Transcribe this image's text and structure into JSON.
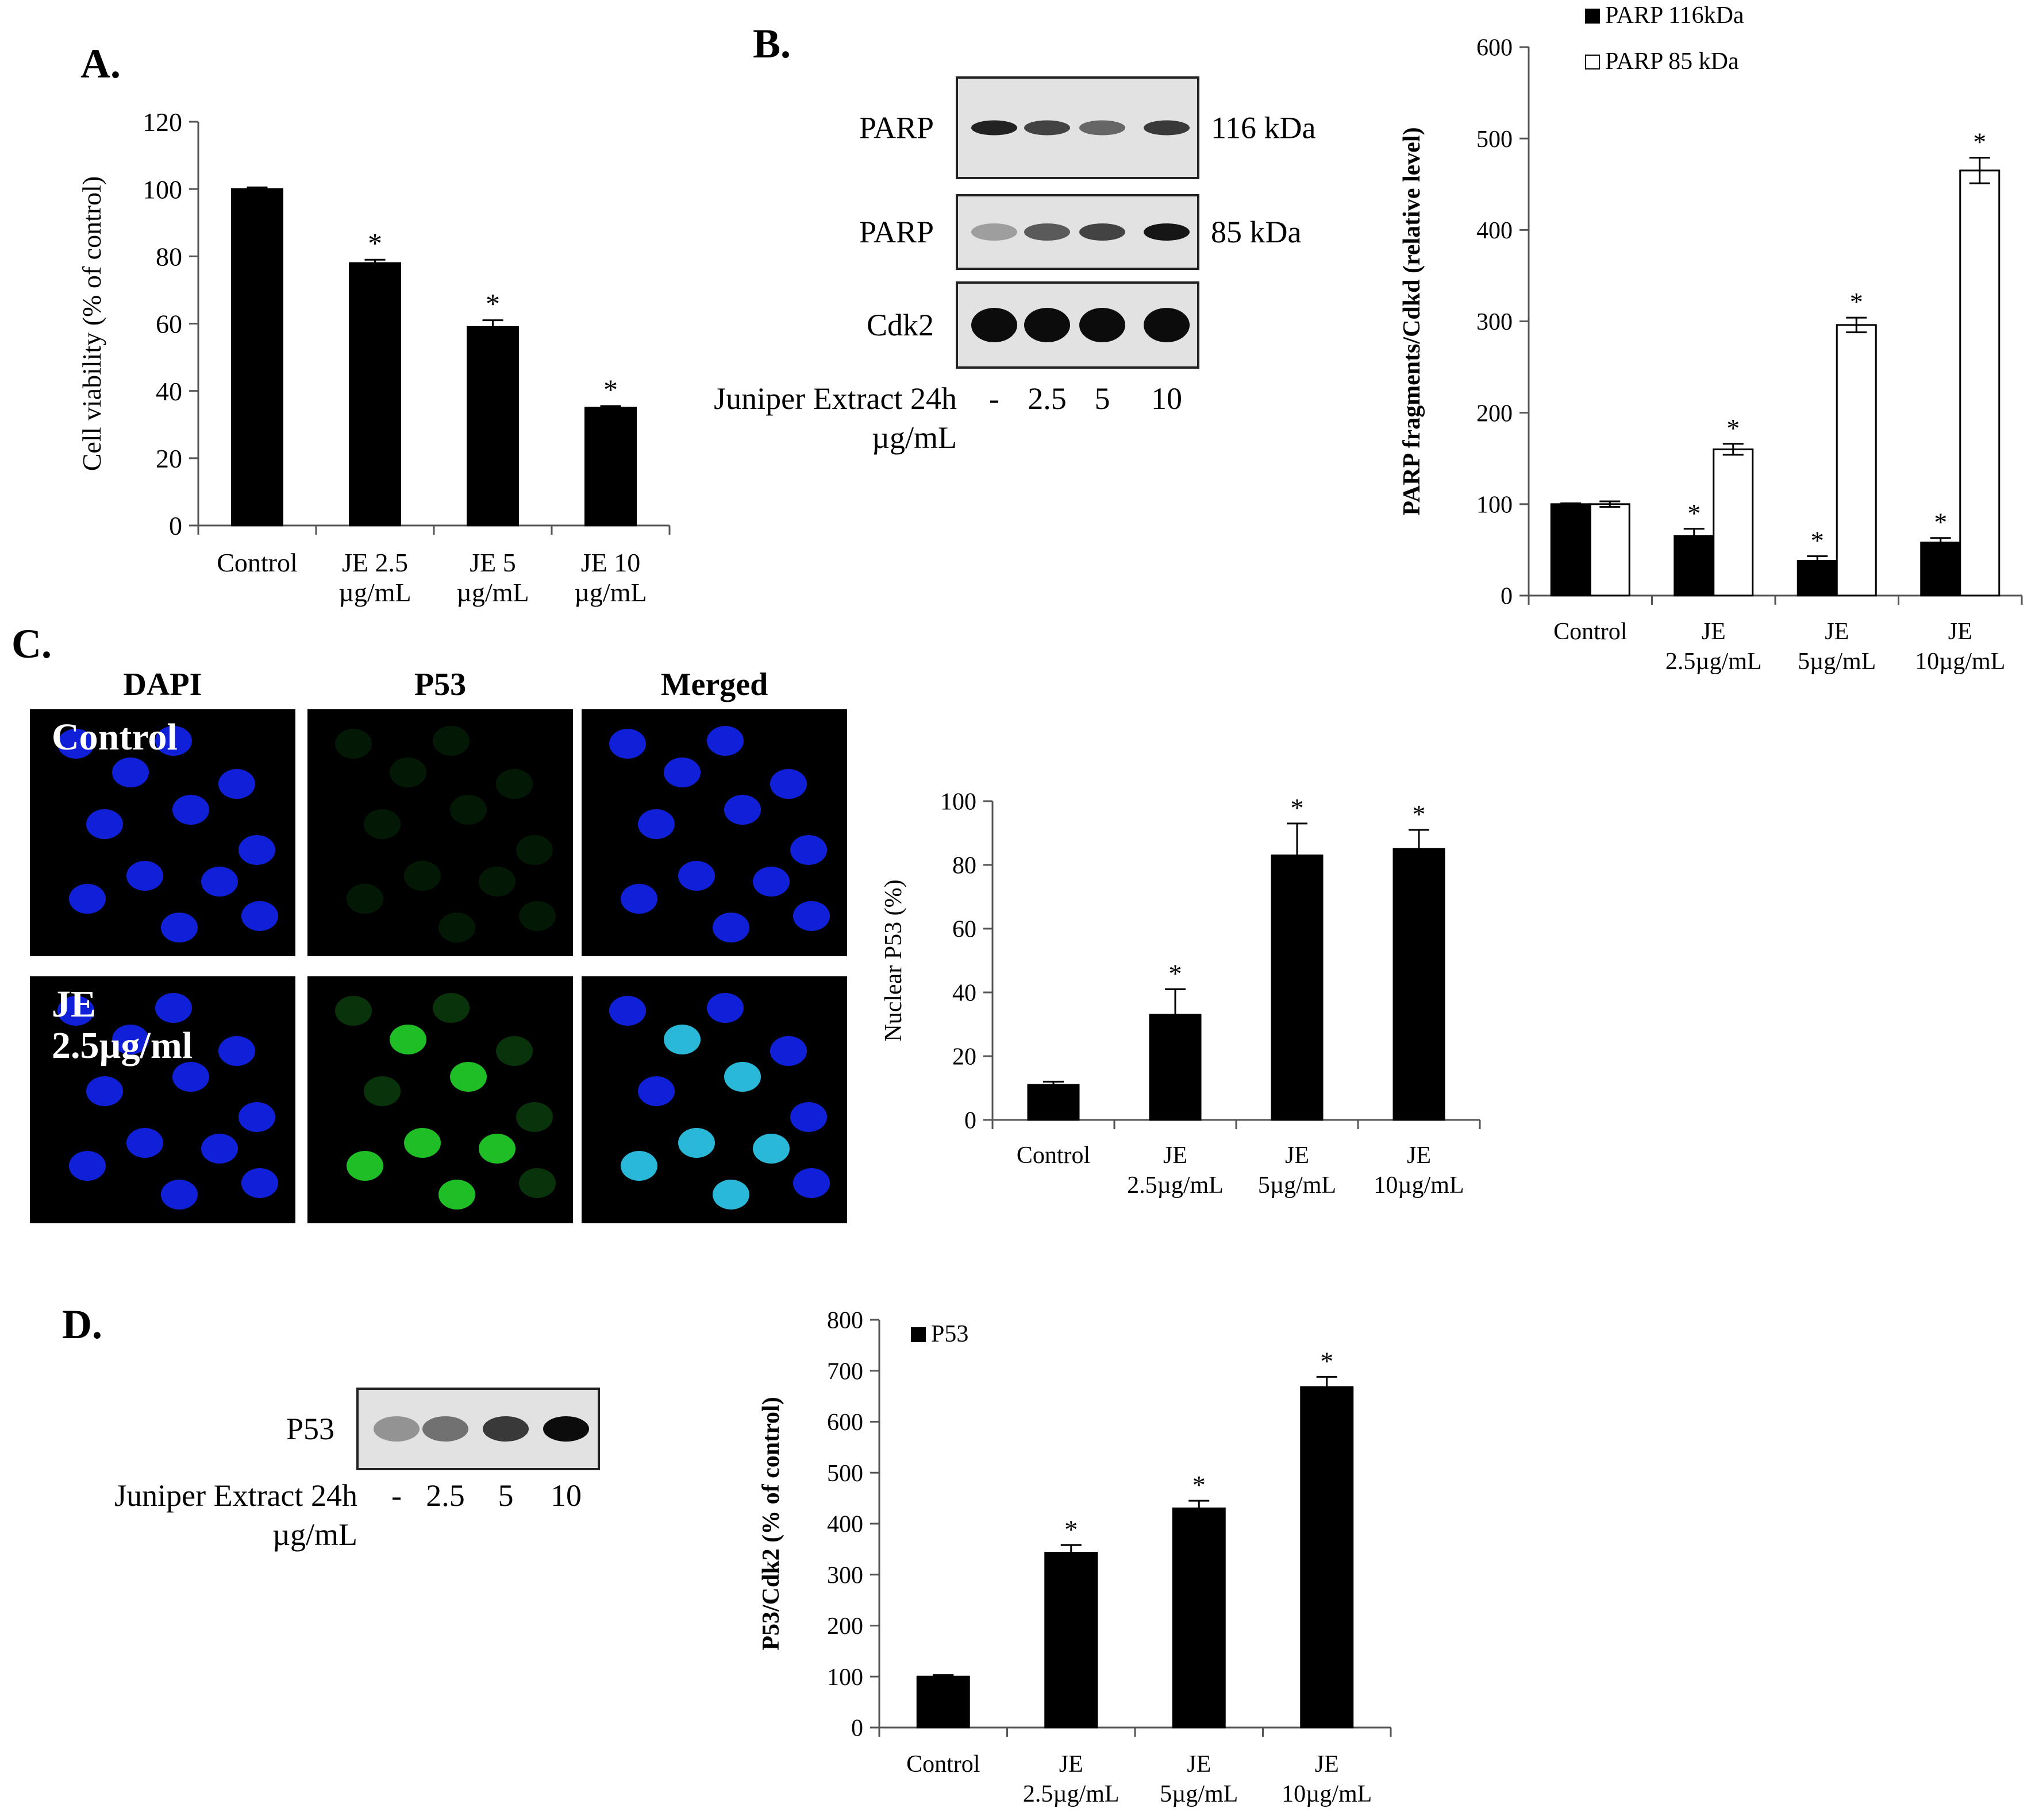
{
  "panels": {
    "a": "A.",
    "b": "B.",
    "c": "C.",
    "d": "D."
  },
  "blot_b": {
    "rows": [
      {
        "label": "PARP",
        "size": "116 kDa"
      },
      {
        "label": "PARP",
        "size": "85 kDa"
      },
      {
        "label": "Cdk2",
        "size": ""
      }
    ],
    "treatment_label": "Juniper Extract 24h",
    "unit": "µg/mL",
    "doses": [
      "-",
      "2.5",
      "5",
      "10"
    ],
    "band_intensity": [
      [
        0.85,
        0.7,
        0.55,
        0.75
      ],
      [
        0.3,
        0.6,
        0.7,
        0.9
      ],
      [
        0.95,
        0.95,
        0.95,
        0.95
      ]
    ]
  },
  "blot_d": {
    "rows": [
      {
        "label": "P53",
        "size": ""
      }
    ],
    "treatment_label": "Juniper Extract 24h",
    "unit": "µg/mL",
    "doses": [
      "-",
      "2.5",
      "5",
      "10"
    ],
    "band_intensity": [
      [
        0.35,
        0.5,
        0.75,
        0.95
      ]
    ]
  },
  "microscopy": {
    "columns": [
      "DAPI",
      "P53",
      "Merged"
    ],
    "rows": [
      "Control",
      "JE\n2.5µg/ml"
    ],
    "nucleus_color": "#1020d8",
    "p53_color": "#22d12a",
    "merged_color": "#2ab8d8"
  },
  "chart_data": [
    {
      "id": "A",
      "type": "bar",
      "categories": [
        "Control\n",
        "JE 2.5\nµg/mL",
        "JE 5\nµg/mL",
        "JE 10\nµg/mL"
      ],
      "series": [
        {
          "values": [
            100,
            78,
            59,
            35
          ],
          "errors": [
            0.5,
            1,
            2,
            0.5
          ],
          "color": "#000000"
        }
      ],
      "significance": [
        "",
        "*",
        "*",
        "*"
      ],
      "ylabel": "Cell viability (% of control)",
      "ylim": [
        0,
        120
      ],
      "yticks": [
        0,
        20,
        40,
        60,
        80,
        100,
        120
      ],
      "legend": "none"
    },
    {
      "id": "B",
      "type": "bar",
      "categories": [
        "Control\n",
        "JE\n2.5µg/mL",
        "JE\n5µg/mL",
        "JE\n10µg/mL"
      ],
      "series": [
        {
          "name": "PARP 116kDa",
          "values": [
            100,
            65,
            38,
            58
          ],
          "errors": [
            1,
            8,
            5,
            5
          ],
          "color": "#000000",
          "significance": [
            "",
            "*",
            "*",
            "*"
          ]
        },
        {
          "name": "PARP 85 kDa",
          "values": [
            100,
            160,
            296,
            465
          ],
          "errors": [
            3,
            6,
            8,
            14
          ],
          "color": "#ffffff",
          "significance": [
            "",
            "*",
            "*",
            "*"
          ]
        }
      ],
      "ylabel": "PARP fragments/Cdkd  (relative level)",
      "ylim": [
        0,
        600
      ],
      "yticks": [
        0,
        100,
        200,
        300,
        400,
        500,
        600
      ],
      "legend": "top-left"
    },
    {
      "id": "C",
      "type": "bar",
      "categories": [
        "Control\n",
        "JE\n2.5µg/mL",
        "JE\n5µg/mL",
        "JE\n10µg/mL"
      ],
      "series": [
        {
          "values": [
            11,
            33,
            83,
            85
          ],
          "errors": [
            1,
            8,
            10,
            6
          ],
          "color": "#000000"
        }
      ],
      "significance": [
        "",
        "*",
        "*",
        "*"
      ],
      "ylabel": "Nuclear P53 (%)",
      "ylim": [
        0,
        100
      ],
      "yticks": [
        0,
        20,
        40,
        60,
        80,
        100
      ],
      "legend": "none"
    },
    {
      "id": "D",
      "type": "bar",
      "categories": [
        "Control\n",
        "JE\n2.5µg/mL",
        "JE\n5µg/mL",
        "JE\n10µg/mL"
      ],
      "series": [
        {
          "name": "P53",
          "values": [
            100,
            343,
            430,
            668
          ],
          "errors": [
            3,
            15,
            15,
            20
          ],
          "color": "#000000"
        }
      ],
      "significance": [
        "",
        "*",
        "*",
        "*"
      ],
      "ylabel": "P53/Cdk2 (% of control)",
      "ylim": [
        0,
        800
      ],
      "yticks": [
        0,
        100,
        200,
        300,
        400,
        500,
        600,
        700,
        800
      ],
      "legend": "top-left"
    }
  ]
}
